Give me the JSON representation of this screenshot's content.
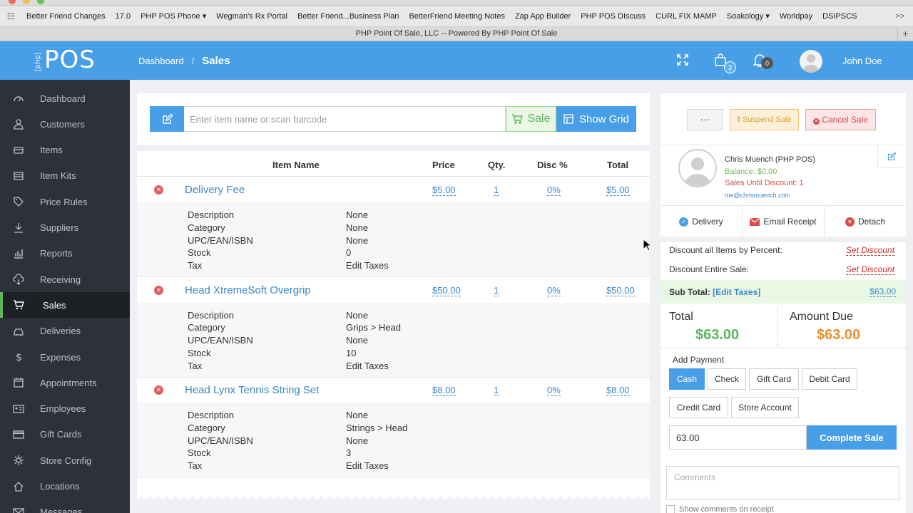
{
  "browser": {
    "bookmarks": [
      "Better Friend Changes",
      "17.0",
      "PHP POS Phone ▾",
      "Wegman's Rx Portal",
      "Better Friend...Business Plan",
      "BetterFriend Meeting Notes",
      "Zap App Builder",
      "PHP POS DIscuss",
      "CURL FIX MAMP",
      "Soakology ▾",
      "Worldpay",
      "DSIPSCS"
    ],
    "more": ">>",
    "tab_title": "PHP Point Of Sale, LLC -- Powered By PHP Point Of Sale",
    "new_tab": "+"
  },
  "header": {
    "logo_prefix": "[php]",
    "logo_text": "POS",
    "breadcrumb_home": "Dashboard",
    "breadcrumb_sep": "/",
    "breadcrumb_current": "Sales",
    "cart_count": "3",
    "notif_count": "0",
    "user_name": "John Doe",
    "colors": {
      "brand": "#489ee7"
    }
  },
  "sidebar": {
    "items": [
      {
        "label": "Dashboard",
        "icon": "dashboard-icon"
      },
      {
        "label": "Customers",
        "icon": "user-icon"
      },
      {
        "label": "Items",
        "icon": "items-icon"
      },
      {
        "label": "Item Kits",
        "icon": "item-kits-icon"
      },
      {
        "label": "Price Rules",
        "icon": "tag-icon"
      },
      {
        "label": "Suppliers",
        "icon": "download-icon"
      },
      {
        "label": "Reports",
        "icon": "bar-chart-icon"
      },
      {
        "label": "Receiving",
        "icon": "cloud-download-icon"
      },
      {
        "label": "Sales",
        "icon": "cart-icon"
      },
      {
        "label": "Deliveries",
        "icon": "car-icon"
      },
      {
        "label": "Expenses",
        "icon": "dollar-icon"
      },
      {
        "label": "Appointments",
        "icon": "calendar-icon"
      },
      {
        "label": "Employees",
        "icon": "id-card-icon"
      },
      {
        "label": "Gift Cards",
        "icon": "credit-card-icon"
      },
      {
        "label": "Store Config",
        "icon": "gear-icon"
      },
      {
        "label": "Locations",
        "icon": "home-icon"
      },
      {
        "label": "Messages",
        "icon": "envelope-icon"
      }
    ]
  },
  "cart": {
    "search_placeholder": "Enter item name or scan barcode",
    "sale_label": "Sale",
    "show_grid_label": "Show Grid",
    "columns": [
      "Item Name",
      "Price",
      "Qty.",
      "Disc %",
      "Total"
    ],
    "detail_labels": [
      "Description",
      "Category",
      "UPC/EAN/ISBN",
      "Stock",
      "Tax"
    ],
    "items": [
      {
        "name": "Delivery Fee",
        "price": "$5.00",
        "qty": "1",
        "disc": "0%",
        "total": "$5.00",
        "details": [
          "None",
          "None",
          "None",
          "0",
          "Edit Taxes"
        ]
      },
      {
        "name": "Head XtremeSoft Overgrip",
        "price": "$50.00",
        "qty": "1",
        "disc": "0%",
        "total": "$50.00",
        "details": [
          "None",
          "Grips > Head",
          "None",
          "10",
          "Edit Taxes"
        ]
      },
      {
        "name": "Head Lynx Tennis String Set",
        "price": "$8.00",
        "qty": "1",
        "disc": "0%",
        "total": "$8.00",
        "details": [
          "None",
          "Strings > Head",
          "None",
          "3",
          "Edit Taxes"
        ]
      }
    ]
  },
  "register": {
    "more_label": "···",
    "suspend_label": "Suspend Sale",
    "cancel_label": "Cancel Sale",
    "customer": {
      "name": "Chris Muench (PHP POS)",
      "balance": "Balance: $0.00",
      "sales_until_discount": "Sales Until Discount: 1",
      "email": "me@chrismuench.com"
    },
    "actions": {
      "delivery": "Delivery",
      "email_receipt": "Email Receipt",
      "detach": "Detach"
    },
    "discount_items_label": "Discount all Items by Percent:",
    "discount_sale_label": "Discount Entire Sale:",
    "set_discount": "Set Discount",
    "subtotal_label": "Sub Total:",
    "edit_taxes": "[Edit Taxes]",
    "subtotal": "$63.00",
    "total_label": "Total",
    "total": "$63.00",
    "amount_due_label": "Amount Due",
    "amount_due": "$63.00",
    "add_payment_label": "Add Payment",
    "payment_types": [
      "Cash",
      "Check",
      "Gift Card",
      "Debit Card",
      "Credit Card",
      "Store Account"
    ],
    "selected_payment": "Cash",
    "amount_value": "63.00",
    "complete_label": "Complete Sale",
    "comments_placeholder": "Comments",
    "show_comments_label": "Show comments on receipt",
    "colors": {
      "green": "#5cb85c",
      "orange": "#e8912d",
      "red": "#d84b4b"
    }
  }
}
